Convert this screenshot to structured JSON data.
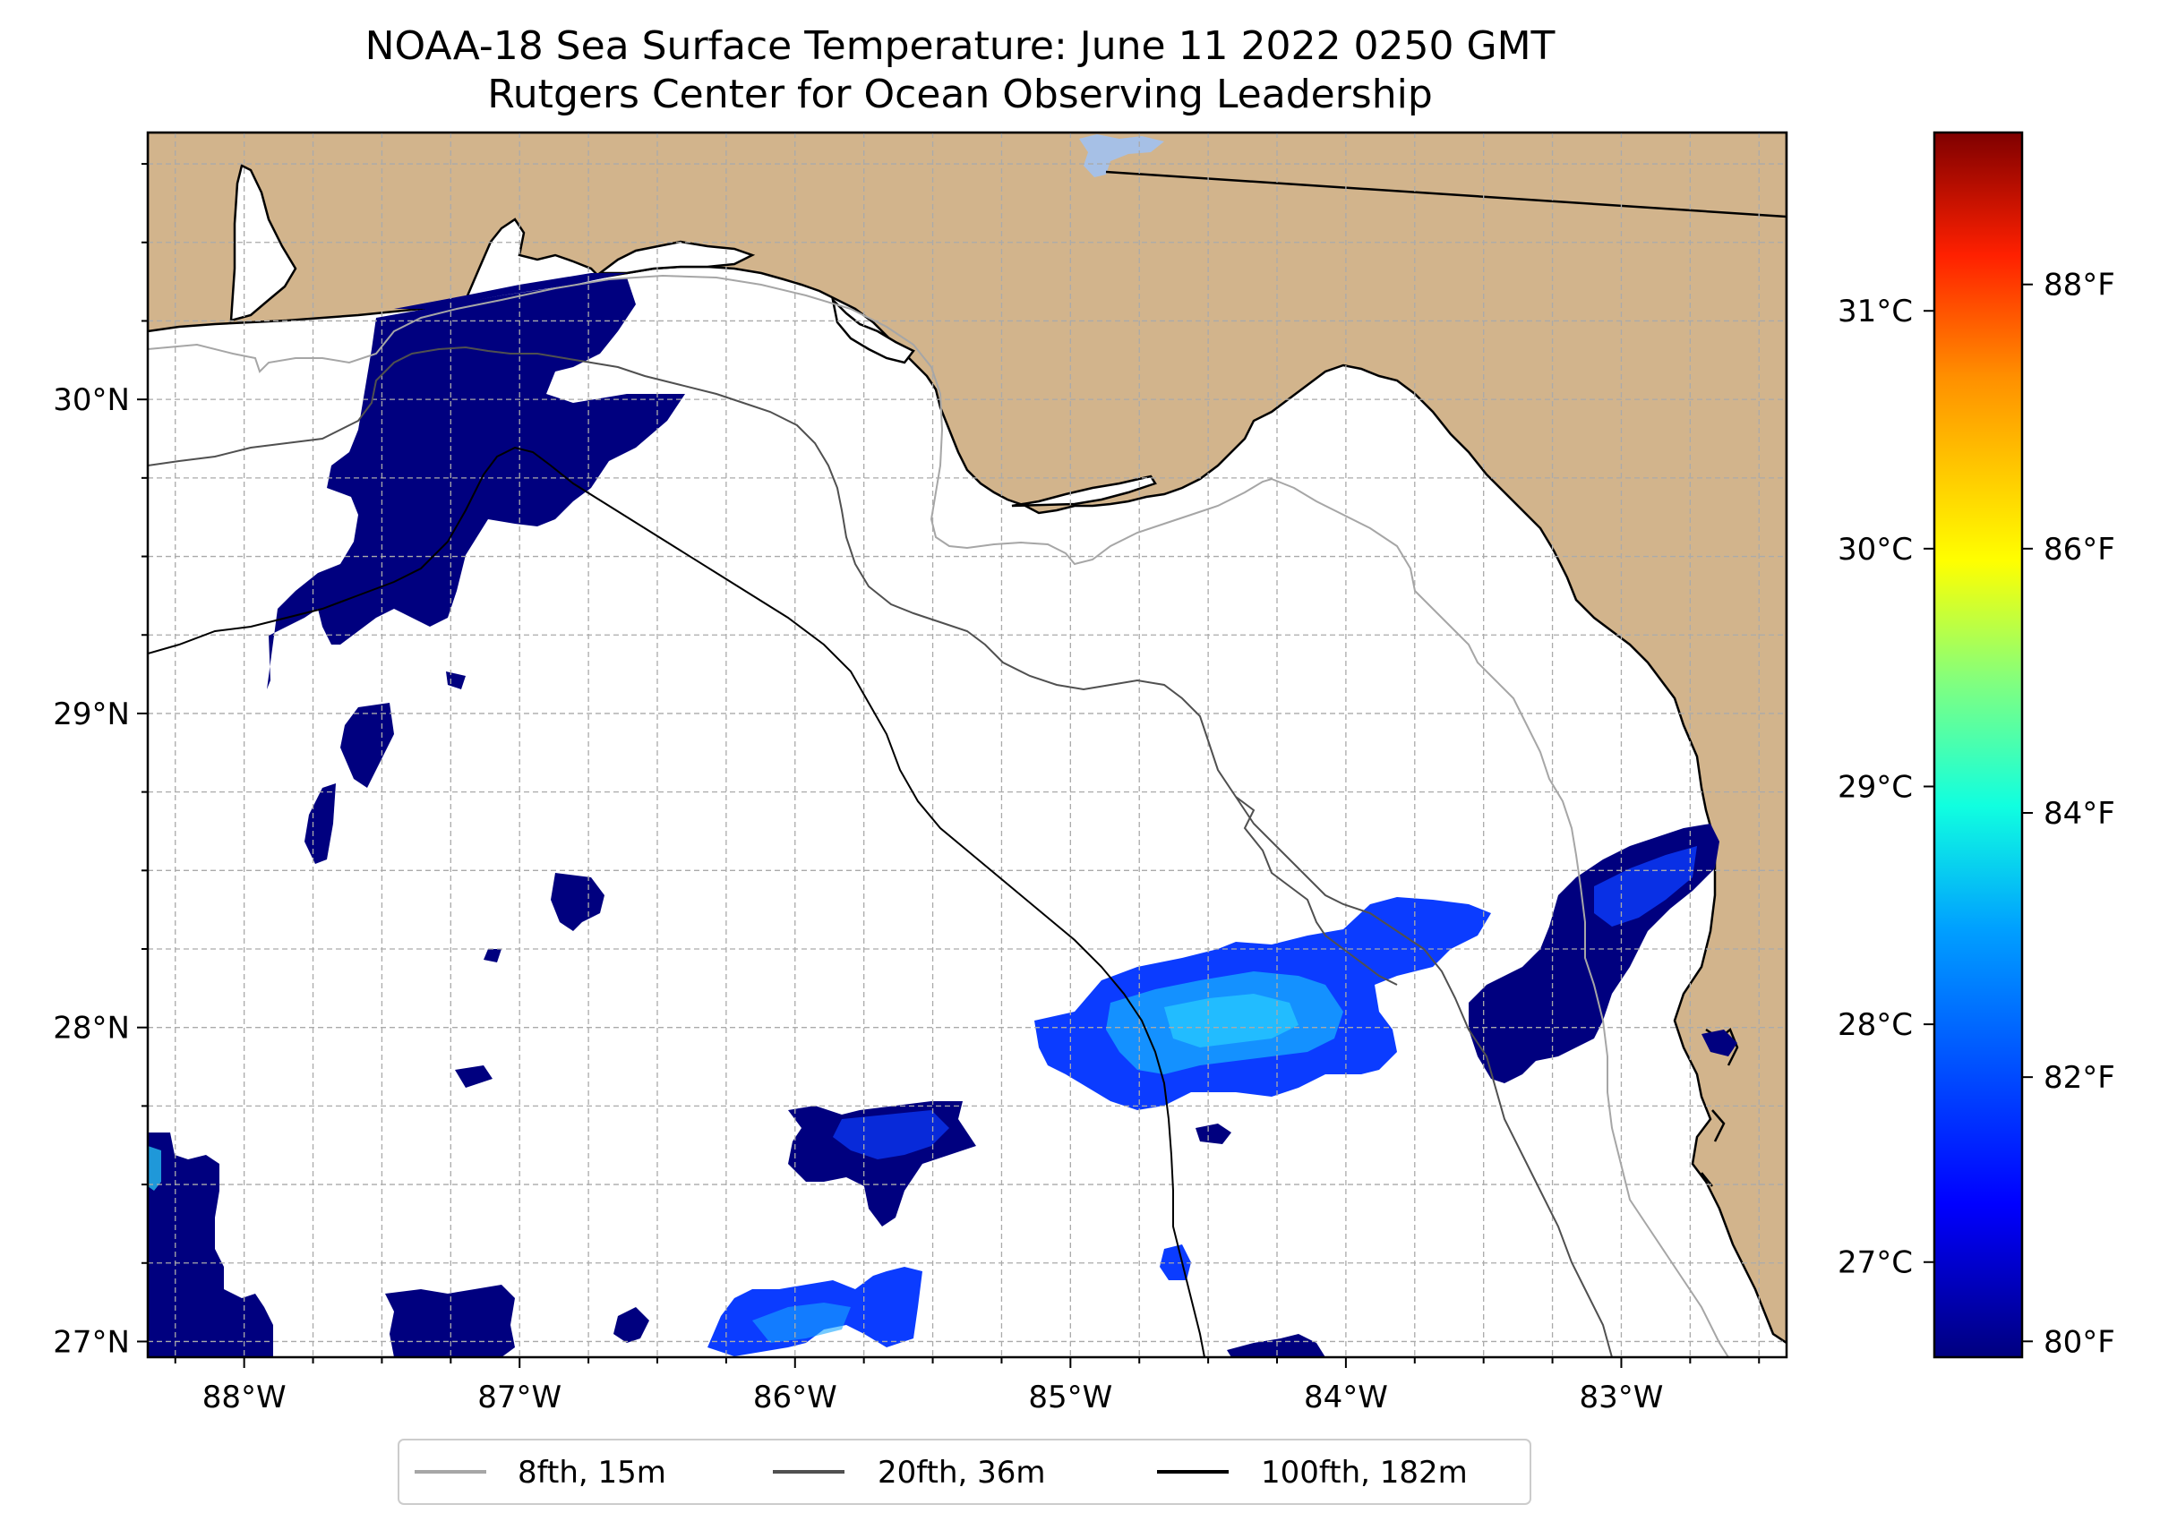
{
  "title": {
    "line1": "NOAA-18 Sea Surface Temperature: June 11 2022 0250 GMT",
    "line2": "Rutgers Center for Ocean Observing Leadership"
  },
  "map": {
    "lon_range": [
      -88.35,
      -82.4
    ],
    "lat_range": [
      26.95,
      30.85
    ],
    "lon_ticks": [
      {
        "value": -88,
        "label": "88°W"
      },
      {
        "value": -87,
        "label": "87°W"
      },
      {
        "value": -86,
        "label": "86°W"
      },
      {
        "value": -85,
        "label": "85°W"
      },
      {
        "value": -84,
        "label": "84°W"
      },
      {
        "value": -83,
        "label": "83°W"
      }
    ],
    "lat_ticks": [
      {
        "value": 27,
        "label": "27°N"
      },
      {
        "value": 28,
        "label": "28°N"
      },
      {
        "value": 29,
        "label": "29°N"
      },
      {
        "value": 30,
        "label": "30°N"
      }
    ],
    "colors": {
      "land": "#d2b48c",
      "ocean": "#ffffff",
      "lake": "#a6c0e6",
      "grid": "#aaaaaa"
    }
  },
  "colorbar": {
    "celsius_ticks": [
      {
        "value": 27,
        "label": "27°C"
      },
      {
        "value": 28,
        "label": "28°C"
      },
      {
        "value": 29,
        "label": "29°C"
      },
      {
        "value": 30,
        "label": "30°C"
      },
      {
        "value": 31,
        "label": "31°C"
      }
    ],
    "fahrenheit_ticks": [
      {
        "value": 80,
        "label": "80°F"
      },
      {
        "value": 82,
        "label": "82°F"
      },
      {
        "value": 84,
        "label": "84°F"
      },
      {
        "value": 86,
        "label": "86°F"
      },
      {
        "value": 88,
        "label": "88°F"
      }
    ],
    "range_c": [
      26.6,
      31.75
    ],
    "colormap": "jet",
    "stops": [
      "#00007f",
      "#0000ff",
      "#00a0ff",
      "#10ffe0",
      "#80ff80",
      "#ffff00",
      "#ff9000",
      "#ff2000",
      "#7f0000"
    ]
  },
  "legend": {
    "items": [
      {
        "label": "8fth, 15m",
        "color": "#a6a6a6"
      },
      {
        "label": "20fth, 36m",
        "color": "#505050"
      },
      {
        "label": "100fth, 182m",
        "color": "#000000"
      }
    ]
  }
}
